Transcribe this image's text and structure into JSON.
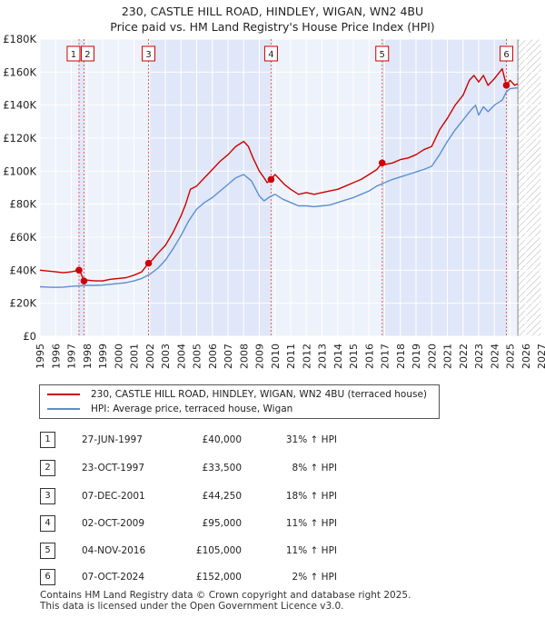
{
  "chart_data": {
    "type": "line",
    "title": "230, CASTLE HILL ROAD, HINDLEY, WIGAN, WN2 4BU",
    "subtitle": "Price paid vs. HM Land Registry's House Price Index (HPI)",
    "ylim": [
      0,
      180000
    ],
    "xlim": [
      1995,
      2027
    ],
    "y_ticks": [
      0,
      20000,
      40000,
      60000,
      80000,
      100000,
      120000,
      140000,
      160000,
      180000
    ],
    "y_tick_labels": [
      "£0",
      "£20K",
      "£40K",
      "£60K",
      "£80K",
      "£100K",
      "£120K",
      "£140K",
      "£160K",
      "£180K"
    ],
    "x_ticks": [
      1995,
      1996,
      1997,
      1998,
      1999,
      2000,
      2001,
      2002,
      2003,
      2004,
      2005,
      2006,
      2007,
      2008,
      2009,
      2010,
      2011,
      2012,
      2013,
      2014,
      2015,
      2016,
      2017,
      2018,
      2019,
      2020,
      2021,
      2022,
      2023,
      2024,
      2025,
      2026,
      2027
    ],
    "x_tick_labels": [
      "1995",
      "1996",
      "1997",
      "1998",
      "1999",
      "2000",
      "2001",
      "2002",
      "2003",
      "2004",
      "2005",
      "2006",
      "2007",
      "2008",
      "2009",
      "2010",
      "2011",
      "2012",
      "2013",
      "2014",
      "2015",
      "2016",
      "2017",
      "2018",
      "2019",
      "2020",
      "2021",
      "2022",
      "2023",
      "2024",
      "2025",
      "2026",
      "2027"
    ],
    "data_end": 2025.5,
    "series": [
      {
        "name": "230, CASTLE HILL ROAD, HINDLEY, WIGAN, WN2 4BU (terraced house)",
        "color": "#cc0000",
        "points": [
          [
            1995.0,
            40000
          ],
          [
            1995.5,
            39500
          ],
          [
            1996.0,
            39000
          ],
          [
            1996.5,
            38500
          ],
          [
            1997.0,
            39000
          ],
          [
            1997.49,
            40000
          ],
          [
            1997.6,
            38500
          ],
          [
            1997.81,
            33500
          ],
          [
            1998.0,
            34000
          ],
          [
            1998.5,
            33500
          ],
          [
            1999.0,
            33500
          ],
          [
            1999.5,
            34500
          ],
          [
            2000.0,
            35000
          ],
          [
            2000.5,
            35500
          ],
          [
            2001.0,
            37000
          ],
          [
            2001.5,
            39000
          ],
          [
            2001.93,
            44250
          ],
          [
            2002.2,
            46500
          ],
          [
            2002.5,
            50000
          ],
          [
            2002.8,
            53000
          ],
          [
            2003.0,
            55000
          ],
          [
            2003.5,
            63000
          ],
          [
            2004.0,
            73000
          ],
          [
            2004.3,
            80000
          ],
          [
            2004.6,
            89000
          ],
          [
            2005.0,
            91000
          ],
          [
            2005.5,
            96000
          ],
          [
            2006.0,
            101000
          ],
          [
            2006.5,
            106000
          ],
          [
            2007.0,
            110000
          ],
          [
            2007.5,
            115000
          ],
          [
            2008.0,
            118000
          ],
          [
            2008.3,
            115000
          ],
          [
            2008.6,
            108000
          ],
          [
            2009.0,
            100000
          ],
          [
            2009.3,
            96000
          ],
          [
            2009.5,
            93000
          ],
          [
            2009.75,
            95000
          ],
          [
            2010.0,
            98000
          ],
          [
            2010.3,
            95000
          ],
          [
            2010.6,
            92000
          ],
          [
            2011.0,
            89000
          ],
          [
            2011.5,
            86000
          ],
          [
            2012.0,
            87000
          ],
          [
            2012.5,
            86000
          ],
          [
            2013.0,
            87000
          ],
          [
            2013.5,
            88000
          ],
          [
            2014.0,
            89000
          ],
          [
            2014.5,
            91000
          ],
          [
            2015.0,
            93000
          ],
          [
            2015.5,
            95000
          ],
          [
            2016.0,
            98000
          ],
          [
            2016.5,
            101000
          ],
          [
            2016.84,
            105000
          ],
          [
            2017.0,
            104000
          ],
          [
            2017.5,
            105000
          ],
          [
            2018.0,
            107000
          ],
          [
            2018.5,
            108000
          ],
          [
            2019.0,
            110000
          ],
          [
            2019.5,
            113000
          ],
          [
            2020.0,
            115000
          ],
          [
            2020.5,
            125000
          ],
          [
            2021.0,
            132000
          ],
          [
            2021.5,
            140000
          ],
          [
            2022.0,
            146000
          ],
          [
            2022.4,
            155000
          ],
          [
            2022.7,
            158000
          ],
          [
            2023.0,
            154000
          ],
          [
            2023.3,
            158000
          ],
          [
            2023.6,
            152000
          ],
          [
            2024.0,
            156000
          ],
          [
            2024.5,
            162000
          ],
          [
            2024.77,
            152000
          ],
          [
            2025.0,
            155000
          ],
          [
            2025.3,
            152000
          ],
          [
            2025.5,
            153000
          ]
        ]
      },
      {
        "name": "HPI: Average price, terraced house, Wigan",
        "color": "#5b8fd0",
        "points": [
          [
            1995.0,
            30000
          ],
          [
            1995.5,
            29800
          ],
          [
            1996.0,
            29600
          ],
          [
            1996.5,
            29800
          ],
          [
            1997.0,
            30200
          ],
          [
            1997.5,
            30500
          ],
          [
            1998.0,
            30800
          ],
          [
            1998.5,
            30800
          ],
          [
            1999.0,
            31000
          ],
          [
            1999.5,
            31500
          ],
          [
            2000.0,
            32000
          ],
          [
            2000.5,
            32500
          ],
          [
            2001.0,
            33500
          ],
          [
            2001.5,
            35000
          ],
          [
            2002.0,
            37500
          ],
          [
            2002.5,
            41000
          ],
          [
            2003.0,
            46000
          ],
          [
            2003.5,
            53000
          ],
          [
            2004.0,
            61000
          ],
          [
            2004.5,
            70000
          ],
          [
            2005.0,
            77000
          ],
          [
            2005.5,
            81000
          ],
          [
            2006.0,
            84000
          ],
          [
            2006.5,
            88000
          ],
          [
            2007.0,
            92000
          ],
          [
            2007.5,
            96000
          ],
          [
            2008.0,
            98000
          ],
          [
            2008.5,
            94000
          ],
          [
            2009.0,
            85000
          ],
          [
            2009.3,
            82000
          ],
          [
            2009.6,
            84000
          ],
          [
            2010.0,
            86000
          ],
          [
            2010.5,
            83000
          ],
          [
            2011.0,
            81000
          ],
          [
            2011.5,
            79000
          ],
          [
            2012.0,
            79000
          ],
          [
            2012.5,
            78500
          ],
          [
            2013.0,
            79000
          ],
          [
            2013.5,
            79500
          ],
          [
            2014.0,
            81000
          ],
          [
            2014.5,
            82500
          ],
          [
            2015.0,
            84000
          ],
          [
            2015.5,
            86000
          ],
          [
            2016.0,
            88000
          ],
          [
            2016.5,
            91000
          ],
          [
            2017.0,
            93000
          ],
          [
            2017.5,
            95000
          ],
          [
            2018.0,
            96500
          ],
          [
            2018.5,
            98000
          ],
          [
            2019.0,
            99500
          ],
          [
            2019.5,
            101000
          ],
          [
            2020.0,
            103000
          ],
          [
            2020.5,
            110000
          ],
          [
            2021.0,
            118000
          ],
          [
            2021.5,
            125000
          ],
          [
            2022.0,
            131000
          ],
          [
            2022.5,
            137000
          ],
          [
            2022.8,
            140000
          ],
          [
            2023.0,
            134000
          ],
          [
            2023.3,
            139000
          ],
          [
            2023.6,
            136000
          ],
          [
            2024.0,
            140000
          ],
          [
            2024.5,
            143000
          ],
          [
            2024.77,
            148000
          ],
          [
            2025.0,
            150000
          ],
          [
            2025.5,
            150500
          ]
        ]
      }
    ],
    "legend": [
      {
        "label": "230, CASTLE HILL ROAD, HINDLEY, WIGAN, WN2 4BU (terraced house)",
        "color": "#cc0000"
      },
      {
        "label": "HPI: Average price, terraced house, Wigan",
        "color": "#5b8fd0"
      }
    ],
    "sales": [
      {
        "num": "1",
        "year": 1997.49,
        "price": 40000
      },
      {
        "num": "2",
        "year": 1997.81,
        "price": 33500
      },
      {
        "num": "3",
        "year": 2001.93,
        "price": 44250
      },
      {
        "num": "4",
        "year": 2009.75,
        "price": 95000
      },
      {
        "num": "5",
        "year": 2016.84,
        "price": 105000
      },
      {
        "num": "6",
        "year": 2024.77,
        "price": 152000
      }
    ],
    "shaded_ranges": [
      [
        1997.49,
        1997.81
      ],
      [
        2001.93,
        2009.75
      ],
      [
        2016.84,
        2024.77
      ]
    ]
  },
  "table": [
    {
      "num": "1",
      "date": "27-JUN-1997",
      "price": "£40,000",
      "hpi": "31% ↑ HPI"
    },
    {
      "num": "2",
      "date": "23-OCT-1997",
      "price": "£33,500",
      "hpi": "8% ↑ HPI"
    },
    {
      "num": "3",
      "date": "07-DEC-2001",
      "price": "£44,250",
      "hpi": "18% ↑ HPI"
    },
    {
      "num": "4",
      "date": "02-OCT-2009",
      "price": "£95,000",
      "hpi": "11% ↑ HPI"
    },
    {
      "num": "5",
      "date": "04-NOV-2016",
      "price": "£105,000",
      "hpi": "11% ↑ HPI"
    },
    {
      "num": "6",
      "date": "07-OCT-2024",
      "price": "£152,000",
      "hpi": "2% ↑ HPI"
    }
  ],
  "footer": {
    "line1": "Contains HM Land Registry data © Crown copyright and database right 2025.",
    "line2": "This data is licensed under the Open Government Licence v3.0."
  }
}
